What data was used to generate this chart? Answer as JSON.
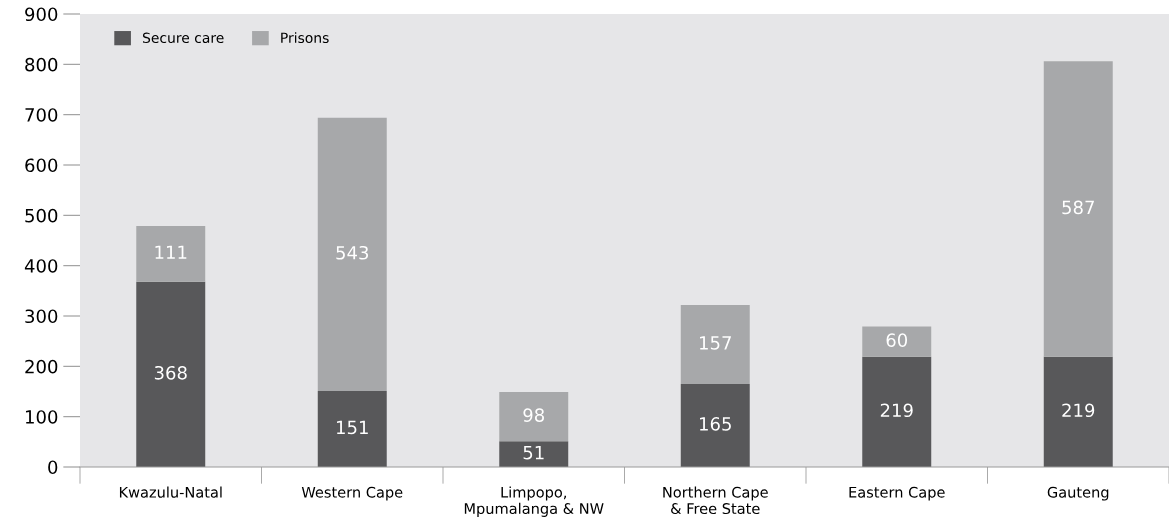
{
  "chart_data": {
    "type": "bar",
    "stacked": true,
    "categories": [
      "Kwazulu-Natal",
      "Western Cape",
      "Limpopo,\nMpumalanga & NW",
      "Northern Cape\n& Free State",
      "Eastern Cape",
      "Gauteng"
    ],
    "series": [
      {
        "name": "Secure care",
        "color": "#58585a",
        "values": [
          368,
          151,
          51,
          165,
          219,
          219
        ]
      },
      {
        "name": "Prisons",
        "color": "#a7a8aa",
        "values": [
          111,
          543,
          98,
          157,
          60,
          587
        ]
      }
    ],
    "ylim": [
      0,
      900
    ],
    "yticks": [
      0,
      100,
      200,
      300,
      400,
      500,
      600,
      700,
      800,
      900
    ],
    "data_labels": true,
    "grid": false,
    "legend": "top left"
  }
}
